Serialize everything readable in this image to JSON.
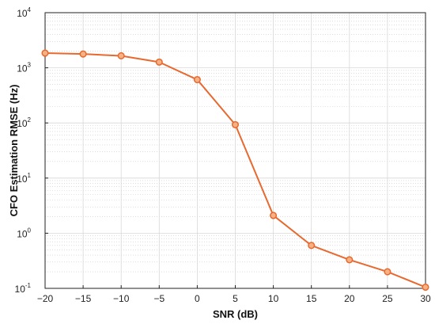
{
  "chart_data": {
    "type": "line",
    "title": "",
    "xlabel": "SNR (dB)",
    "ylabel": "CFO Estimation RMSE (Hz)",
    "x": [
      -20,
      -15,
      -10,
      -5,
      0,
      5,
      10,
      15,
      20,
      25,
      30
    ],
    "xlim": [
      -20,
      30
    ],
    "xticks": [
      -20,
      -15,
      -10,
      -5,
      0,
      5,
      10,
      15,
      20,
      25,
      30
    ],
    "yscale": "log",
    "ylim": [
      0.1,
      10000
    ],
    "yticks": [
      {
        "base": "10",
        "exp": "-1",
        "value": 0.1
      },
      {
        "base": "10",
        "exp": "0",
        "value": 1
      },
      {
        "base": "10",
        "exp": "1",
        "value": 10
      },
      {
        "base": "10",
        "exp": "2",
        "value": 100
      },
      {
        "base": "10",
        "exp": "3",
        "value": 1000
      },
      {
        "base": "10",
        "exp": "4",
        "value": 10000
      }
    ],
    "grid": true,
    "minor_grid": true,
    "series": [
      {
        "values": [
          1850,
          1780,
          1650,
          1270,
          610,
          93,
          2.1,
          0.6,
          0.33,
          0.2,
          0.105
        ],
        "color": "#E8692F",
        "marker": "circle"
      }
    ]
  }
}
